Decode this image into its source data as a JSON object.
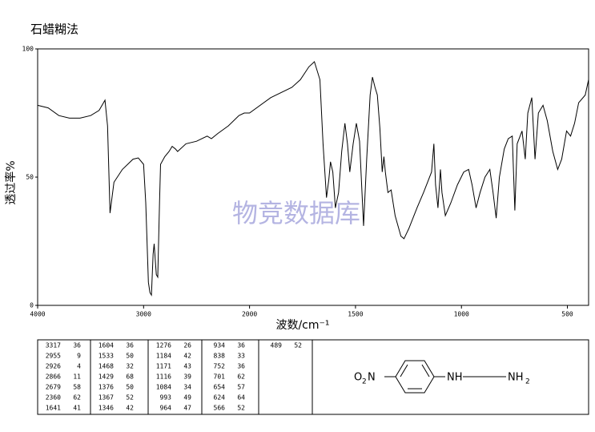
{
  "chart_data": {
    "type": "line",
    "title": "石蜡糊法",
    "y_label": "透过率%",
    "x_label": "波数/cm⁻¹",
    "watermark": "物竞数据库",
    "xlim": [
      4000,
      400
    ],
    "scale_change_at": 2000,
    "ylim": [
      0,
      100
    ],
    "xticks": [
      4000,
      3000,
      2000,
      1500,
      1000,
      500
    ],
    "yticks": [
      0,
      50,
      100
    ],
    "color": "#000000",
    "x": [
      4000,
      3900,
      3800,
      3700,
      3600,
      3500,
      3420,
      3364,
      3340,
      3317,
      3280,
      3200,
      3100,
      3050,
      3000,
      2980,
      2955,
      2940,
      2926,
      2910,
      2900,
      2880,
      2866,
      2850,
      2840,
      2800,
      2760,
      2730,
      2700,
      2679,
      2600,
      2500,
      2400,
      2360,
      2300,
      2200,
      2100,
      2050,
      2000,
      1900,
      1800,
      1760,
      1720,
      1694,
      1668,
      1653,
      1637,
      1626,
      1618,
      1607,
      1595,
      1580,
      1565,
      1550,
      1538,
      1527,
      1511,
      1496,
      1481,
      1462,
      1447,
      1431,
      1420,
      1408,
      1397,
      1385,
      1374,
      1366,
      1359,
      1347,
      1332,
      1313,
      1286,
      1271,
      1248,
      1210,
      1179,
      1160,
      1141,
      1130,
      1122,
      1111,
      1099,
      1092,
      1076,
      1050,
      1019,
      989,
      966,
      950,
      931,
      912,
      889,
      866,
      851,
      836,
      821,
      798,
      779,
      760,
      748,
      737,
      714,
      699,
      687,
      668,
      653,
      637,
      615,
      595,
      569,
      546,
      527,
      504,
      485,
      466,
      447,
      416,
      400
    ],
    "values": [
      78,
      77,
      74,
      73,
      73,
      74,
      76,
      80,
      70,
      36,
      48,
      53,
      57,
      57.5,
      55,
      40,
      9,
      5,
      4,
      20,
      24,
      12,
      11,
      40,
      55,
      58,
      60,
      62,
      61,
      60,
      63,
      64,
      66,
      65,
      67,
      70,
      74,
      75,
      75,
      81,
      85,
      88,
      93,
      95,
      88,
      63,
      42,
      49,
      56,
      52,
      38,
      44,
      60,
      71,
      63,
      52,
      63,
      71,
      64,
      31,
      57,
      82,
      89,
      85,
      82,
      69,
      52,
      58,
      52,
      44,
      45,
      35,
      27,
      26,
      30,
      38,
      44,
      48,
      52,
      63,
      47,
      38,
      53,
      44,
      35,
      40,
      47,
      52,
      53,
      47,
      38,
      44,
      50,
      53,
      44,
      34,
      50,
      61,
      65,
      66,
      37,
      63,
      68,
      57,
      75,
      81,
      57,
      75,
      78,
      72,
      60,
      53,
      57,
      68,
      66,
      71,
      79,
      82,
      88
    ]
  },
  "peak_table": [
    [
      [
        3317,
        36
      ],
      [
        2955,
        9
      ],
      [
        2926,
        4
      ],
      [
        2866,
        11
      ],
      [
        2679,
        58
      ],
      [
        2360,
        62
      ],
      [
        1641,
        41
      ]
    ],
    [
      [
        1604,
        36
      ],
      [
        1533,
        50
      ],
      [
        1468,
        32
      ],
      [
        1429,
        68
      ],
      [
        1376,
        50
      ],
      [
        1367,
        52
      ],
      [
        1346,
        42
      ]
    ],
    [
      [
        1276,
        26
      ],
      [
        1184,
        42
      ],
      [
        1171,
        43
      ],
      [
        1116,
        39
      ],
      [
        1084,
        34
      ],
      [
        993,
        49
      ],
      [
        964,
        47
      ]
    ],
    [
      [
        934,
        36
      ],
      [
        838,
        33
      ],
      [
        752,
        36
      ],
      [
        701,
        62
      ],
      [
        654,
        57
      ],
      [
        624,
        64
      ],
      [
        566,
        52
      ]
    ],
    [
      [
        489,
        52
      ]
    ]
  ],
  "structure": {
    "left": [
      "O",
      "2",
      "N"
    ],
    "right": [
      "NH",
      "NH",
      "2"
    ]
  }
}
